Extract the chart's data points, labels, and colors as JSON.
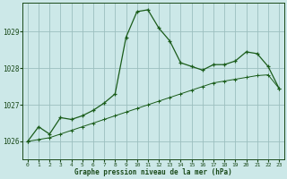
{
  "hours": [
    0,
    1,
    2,
    3,
    4,
    5,
    6,
    7,
    8,
    9,
    10,
    11,
    12,
    13,
    14,
    15,
    16,
    17,
    18,
    19,
    20,
    21,
    22,
    23
  ],
  "pressure_line1": [
    1026.0,
    1026.4,
    1026.2,
    1026.65,
    1026.6,
    1026.7,
    1026.85,
    1027.05,
    1027.3,
    1028.85,
    1029.55,
    1029.6,
    1029.1,
    1028.75,
    1028.15,
    1028.05,
    1027.95,
    1028.1,
    1028.1,
    1028.2,
    1028.45,
    1028.4,
    1028.05,
    1027.45
  ],
  "pressure_line2": [
    1026.0,
    1026.05,
    1026.1,
    1026.2,
    1026.3,
    1026.4,
    1026.5,
    1026.6,
    1026.7,
    1026.8,
    1026.9,
    1027.0,
    1027.1,
    1027.2,
    1027.3,
    1027.4,
    1027.5,
    1027.6,
    1027.65,
    1027.7,
    1027.75,
    1027.8,
    1027.82,
    1027.45
  ],
  "line_color": "#1a5c1a",
  "bg_color": "#cce8e8",
  "grid_color": "#9bbfbf",
  "xlabel": "Graphe pression niveau de la mer (hPa)",
  "xlabel_color": "#1a4a1a",
  "tick_color": "#1a4a1a",
  "ylim": [
    1025.5,
    1029.8
  ],
  "yticks": [
    1026,
    1027,
    1028,
    1029
  ],
  "xticks": [
    0,
    1,
    2,
    3,
    4,
    5,
    6,
    7,
    8,
    9,
    10,
    11,
    12,
    13,
    14,
    15,
    16,
    17,
    18,
    19,
    20,
    21,
    22,
    23
  ]
}
